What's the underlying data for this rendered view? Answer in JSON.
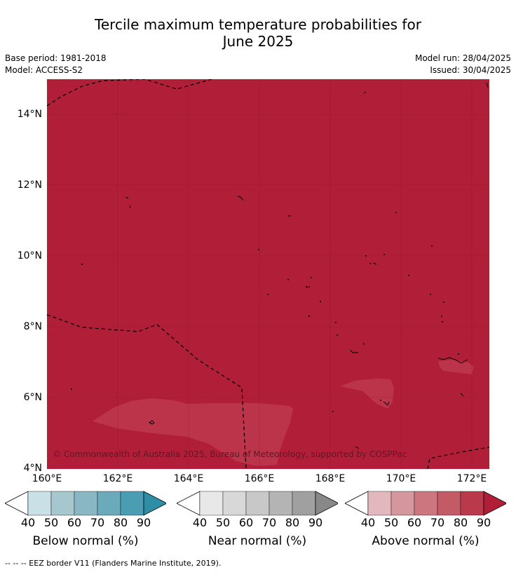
{
  "title_line1": "Tercile maximum temperature probabilities for",
  "title_line2": "June 2025",
  "base_period": "Base period: 1981-2018",
  "model": "Model: ACCESS-S2",
  "model_run": "Model run: 28/04/2025",
  "issued": "Issued: 30/04/2025",
  "lat_labels": [
    "14°N",
    "12°N",
    "10°N",
    "8°N",
    "6°N",
    "4°N"
  ],
  "lon_labels": [
    "160°E",
    "162°E",
    "164°E",
    "166°E",
    "168°E",
    "170°E",
    "172°E"
  ],
  "copyright": "© Commonwealth of Australia 2025, Bureau of Meteorology, supported by COSPPac",
  "legends": [
    {
      "label": "Below normal (%)",
      "ticks": [
        "40",
        "50",
        "60",
        "70",
        "80",
        "90"
      ],
      "colors": [
        "#ffffff",
        "#c8e0e6",
        "#a6c7cd",
        "#89b8c4",
        "#6aaabb",
        "#4a9db2",
        "#2e8ea5"
      ]
    },
    {
      "label": "Near normal (%)",
      "ticks": [
        "40",
        "50",
        "60",
        "70",
        "80",
        "90"
      ],
      "colors": [
        "#ffffff",
        "#e8e8e8",
        "#d8d8d8",
        "#c8c8c8",
        "#b4b4b4",
        "#a0a0a0",
        "#888888"
      ]
    },
    {
      "label": "Above normal (%)",
      "ticks": [
        "40",
        "50",
        "60",
        "70",
        "80",
        "90"
      ],
      "colors": [
        "#ffffff",
        "#e2b7bd",
        "#d6969e",
        "#cc777f",
        "#c35a66",
        "#ba3a4c",
        "#b11e38"
      ]
    }
  ],
  "footer": "--  --  -- EEZ border V11 (Flanders Marine Institute, 2019).",
  "map_colors": {
    "above_90": "#b11e38",
    "above_80": "#bc3449"
  }
}
